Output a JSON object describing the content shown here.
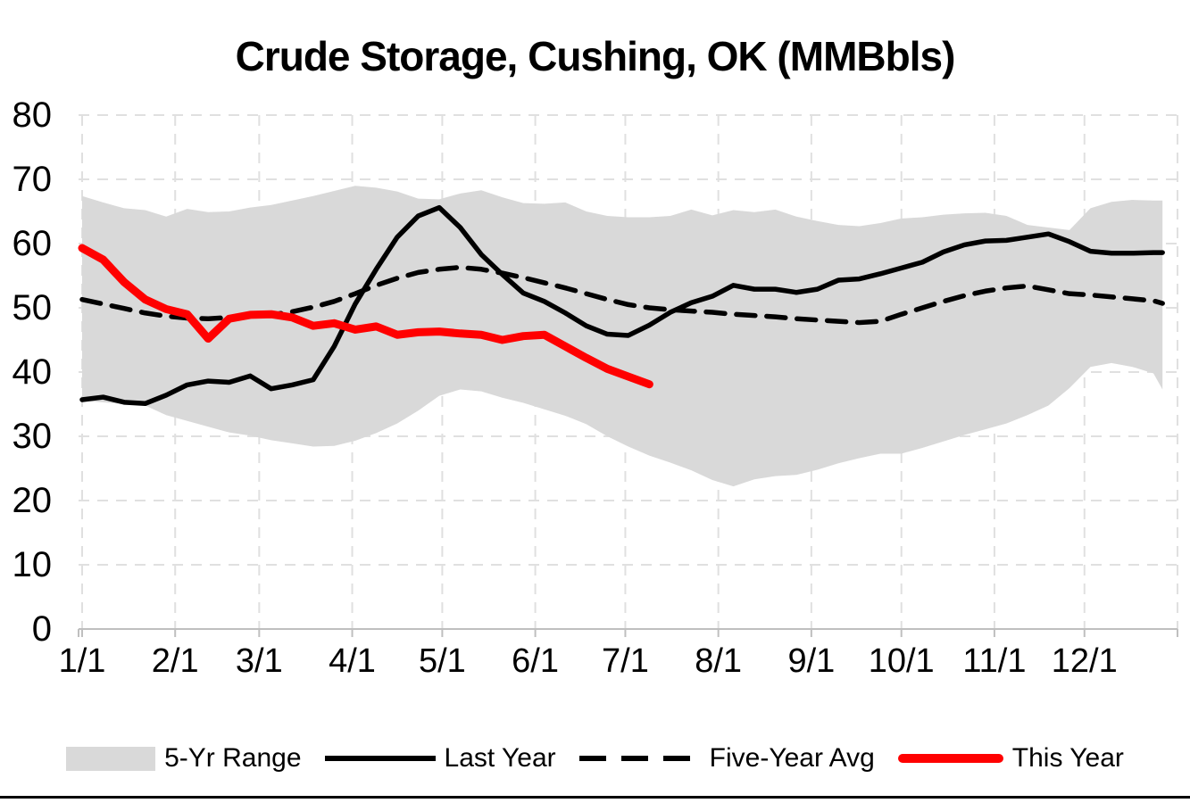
{
  "title": "Crude Storage, Cushing, OK (MMBbls)",
  "chart_data": {
    "type": "area+line",
    "title": "Crude Storage, Cushing, OK (MMBbls)",
    "xlabel": "",
    "ylabel": "",
    "unit": "MMBbls",
    "ylim": [
      0,
      80
    ],
    "grid": true,
    "legend_position": "bottom",
    "x_frequency": "weekly",
    "y_ticks": [
      0,
      10,
      20,
      30,
      40,
      50,
      60,
      70,
      80
    ],
    "x_ticks": [
      "1/1",
      "2/1",
      "3/1",
      "4/1",
      "5/1",
      "6/1",
      "7/1",
      "8/1",
      "9/1",
      "10/1",
      "11/1",
      "12/1"
    ],
    "colors": {
      "band": "#D9D9D9",
      "black": "#000000",
      "red": "#FF0000",
      "gridline": "#E0E0E0",
      "axis": "#BFBFBF",
      "text": "#000000"
    },
    "series": [
      {
        "id": "range",
        "name": "5-Yr Range",
        "type": "band",
        "color": "#D9D9D9",
        "top": [
          67.4,
          66.4,
          65.5,
          65.2,
          64.2,
          65.4,
          64.9,
          65.0,
          65.6,
          66.0,
          66.7,
          67.4,
          68.2,
          69.0,
          68.7,
          68.1,
          67.0,
          66.9,
          67.8,
          68.3,
          67.2,
          66.3,
          66.2,
          66.4,
          65.0,
          64.3,
          64.1,
          64.1,
          64.3,
          65.3,
          64.4,
          65.2,
          64.9,
          65.3,
          64.2,
          63.5,
          62.9,
          62.7,
          63.2,
          63.9,
          64.1,
          64.5,
          64.7,
          64.8,
          64.3,
          62.9,
          62.5,
          62.1,
          65.5,
          66.5,
          66.8,
          66.7,
          66.7
        ],
        "bottom": [
          35.5,
          35.3,
          35.0,
          34.8,
          33.3,
          32.4,
          31.5,
          30.6,
          30.1,
          29.4,
          28.9,
          28.4,
          28.5,
          29.3,
          30.5,
          32.0,
          34.0,
          36.3,
          37.3,
          37.0,
          36.0,
          35.2,
          34.2,
          33.2,
          31.9,
          30.0,
          28.4,
          27.0,
          25.9,
          24.7,
          23.2,
          22.2,
          23.3,
          23.8,
          24.0,
          24.8,
          25.8,
          26.6,
          27.3,
          27.3,
          28.2,
          29.2,
          30.2,
          31.1,
          32.0,
          33.3,
          34.8,
          37.5,
          40.8,
          41.4,
          40.8,
          39.8,
          37.3
        ]
      },
      {
        "id": "last-year",
        "name": "Last Year",
        "type": "line",
        "style": "solid",
        "color": "#000000",
        "width": 5.5,
        "values": [
          35.7,
          36.1,
          35.3,
          35.1,
          36.4,
          38.0,
          38.6,
          38.4,
          39.4,
          37.4,
          38.0,
          38.8,
          44.0,
          50.6,
          56.0,
          61.0,
          64.3,
          65.6,
          62.5,
          58.3,
          55.2,
          52.3,
          51.0,
          49.2,
          47.2,
          45.9,
          45.7,
          47.3,
          49.3,
          50.8,
          51.8,
          53.5,
          52.9,
          52.9,
          52.4,
          52.9,
          54.3,
          54.5,
          55.3,
          56.2,
          57.1,
          58.7,
          59.8,
          60.4,
          60.5,
          61.0,
          61.5,
          60.3,
          58.8,
          58.5,
          58.5,
          58.6,
          58.6
        ]
      },
      {
        "id": "five-year-avg",
        "name": "Five-Year Avg",
        "type": "line",
        "style": "dashed",
        "color": "#000000",
        "width": 5.5,
        "values": [
          51.3,
          50.6,
          49.9,
          49.2,
          48.7,
          48.4,
          48.3,
          48.5,
          48.7,
          48.9,
          49.4,
          50.1,
          51.0,
          52.2,
          53.5,
          54.6,
          55.5,
          56.0,
          56.3,
          56.0,
          55.4,
          54.7,
          53.9,
          53.1,
          52.2,
          51.3,
          50.5,
          50.0,
          49.7,
          49.5,
          49.3,
          49.0,
          48.8,
          48.6,
          48.3,
          48.1,
          47.9,
          47.7,
          47.9,
          49.0,
          50.0,
          51.0,
          51.9,
          52.6,
          53.1,
          53.4,
          52.8,
          52.2,
          52.0,
          51.7,
          51.4,
          51.1,
          50.7
        ]
      },
      {
        "id": "this-year",
        "name": "This Year",
        "type": "line",
        "style": "solid",
        "color": "#FF0000",
        "width": 9,
        "values": [
          59.3,
          57.5,
          54.0,
          51.3,
          49.8,
          49.0,
          45.2,
          48.3,
          48.9,
          49.0,
          48.5,
          47.2,
          47.6,
          46.6,
          47.1,
          45.8,
          46.2,
          46.3,
          46.0,
          45.8,
          45.0,
          45.6,
          45.8,
          44.0,
          42.2,
          40.5,
          39.3,
          38.1
        ]
      }
    ]
  }
}
